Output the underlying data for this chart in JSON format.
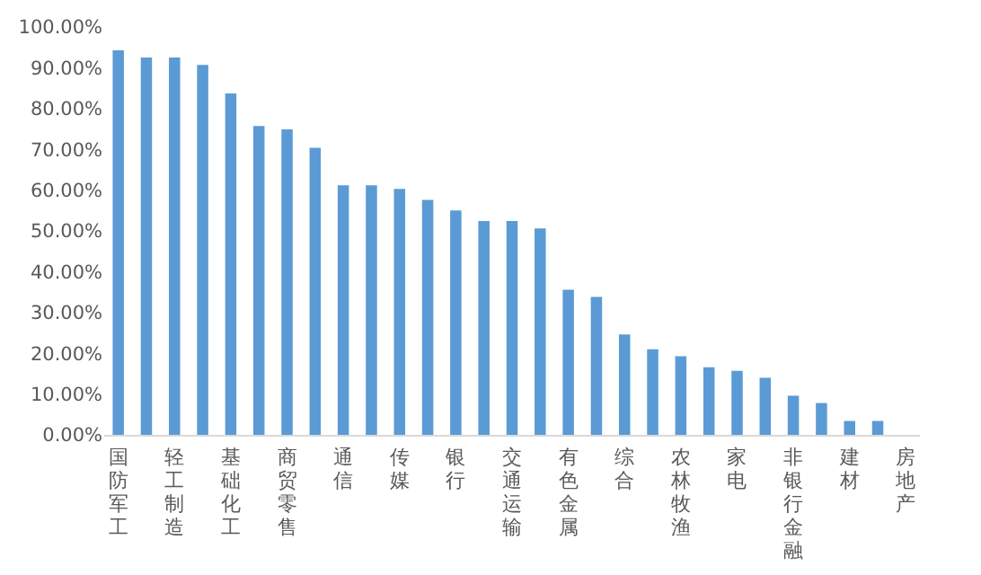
{
  "chart_data": {
    "type": "bar",
    "categories": [
      "国防军工",
      null,
      "轻工制造",
      null,
      "基础化工",
      null,
      "商贸零售",
      null,
      "通信",
      null,
      "传媒",
      null,
      "银行",
      null,
      "交通运输",
      null,
      "有色金属",
      null,
      "综合",
      null,
      "农林牧渔",
      null,
      "家电",
      null,
      "非银行金融",
      null,
      "建材",
      null,
      "房地产"
    ],
    "values": [
      94.3,
      92.5,
      92.5,
      90.7,
      83.7,
      75.7,
      74.9,
      70.4,
      61.2,
      61.2,
      60.3,
      57.6,
      55.0,
      52.4,
      52.4,
      50.6,
      35.6,
      33.8,
      24.6,
      21.0,
      19.3,
      16.6,
      15.7,
      14.0,
      9.6,
      7.8,
      3.4,
      3.4,
      0
    ],
    "color": "#5b9bd5",
    "ylim": [
      0,
      100
    ],
    "yticks": [
      {
        "value": 0,
        "label": "0.00%"
      },
      {
        "value": 10,
        "label": "10.00%"
      },
      {
        "value": 20,
        "label": "20.00%"
      },
      {
        "value": 30,
        "label": "30.00%"
      },
      {
        "value": 40,
        "label": "40.00%"
      },
      {
        "value": 50,
        "label": "50.00%"
      },
      {
        "value": 60,
        "label": "60.00%"
      },
      {
        "value": 70,
        "label": "70.00%"
      },
      {
        "value": 80,
        "label": "80.00%"
      },
      {
        "value": 90,
        "label": "90.00%"
      },
      {
        "value": 100,
        "label": "100.00%"
      }
    ],
    "grid": false,
    "legend": false
  }
}
